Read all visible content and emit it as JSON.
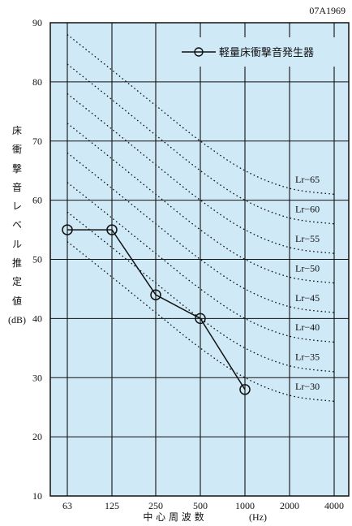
{
  "doc_id": "07A1969",
  "chart_data": {
    "type": "line",
    "x_categories": [
      "63",
      "125",
      "250",
      "500",
      "1000",
      "2000",
      "4000"
    ],
    "y_ticks": [
      10,
      20,
      30,
      40,
      50,
      60,
      70,
      80,
      90
    ],
    "ylim": [
      10,
      90
    ],
    "ylabel_chars": [
      "床",
      "衝",
      "撃",
      "音",
      "レ",
      "ベ",
      "ル",
      "推",
      "定",
      "値"
    ],
    "ylabel_unit": "(dB)",
    "xlabel": "中 心 周 波 数",
    "xlabel_unit": "(Hz)",
    "grid": true,
    "background_color": "#cfe9f7",
    "legend": {
      "position": "top-right",
      "label": "軽量床衝撃音発生器"
    },
    "series": [
      {
        "name": "軽量床衝撃音発生器",
        "x": [
          "63",
          "125",
          "250",
          "500",
          "1000"
        ],
        "values": [
          55,
          55,
          44,
          40,
          28
        ]
      }
    ],
    "reference_curves": [
      {
        "label": "Lr−65",
        "values": [
          88,
          82,
          76,
          70,
          65,
          62,
          61
        ]
      },
      {
        "label": "Lr−60",
        "values": [
          83,
          77,
          71,
          65,
          60,
          57,
          56
        ]
      },
      {
        "label": "Lr−55",
        "values": [
          78,
          72,
          66,
          60,
          55,
          52,
          51
        ]
      },
      {
        "label": "Lr−50",
        "values": [
          73,
          67,
          61,
          55,
          50,
          47,
          46
        ]
      },
      {
        "label": "Lr−45",
        "values": [
          68,
          62,
          56,
          50,
          45,
          42,
          41
        ]
      },
      {
        "label": "Lr−40",
        "values": [
          63,
          57,
          51,
          45,
          40,
          37,
          36
        ]
      },
      {
        "label": "Lr−35",
        "values": [
          58,
          52,
          46,
          40,
          35,
          32,
          31
        ]
      },
      {
        "label": "Lr−30",
        "values": [
          53,
          47,
          41,
          35,
          30,
          27,
          26
        ]
      }
    ]
  }
}
